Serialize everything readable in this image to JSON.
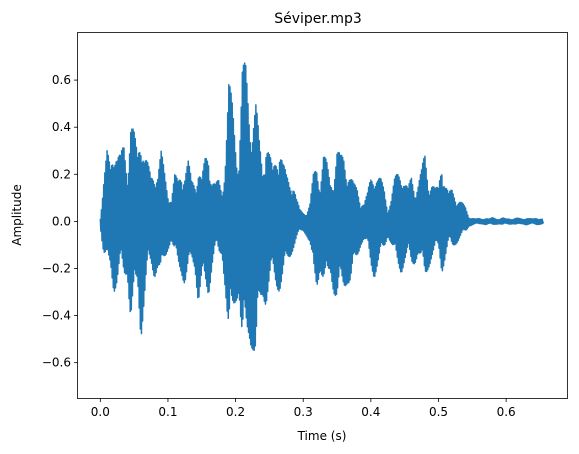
{
  "chart_data": {
    "type": "line",
    "title": "Séviper.mp3",
    "xlabel": "Time (s)",
    "ylabel": "Amplitude",
    "xlim": [
      -0.033,
      0.69
    ],
    "ylim": [
      -0.75,
      0.8
    ],
    "xticks": [
      0.0,
      0.1,
      0.2,
      0.3,
      0.4,
      0.5,
      0.6
    ],
    "xtick_labels": [
      "0.0",
      "0.1",
      "0.2",
      "0.3",
      "0.4",
      "0.5",
      "0.6"
    ],
    "yticks": [
      -0.6,
      -0.4,
      -0.2,
      0.0,
      0.2,
      0.4,
      0.6
    ],
    "ytick_labels": [
      "−0.6",
      "−0.4",
      "−0.2",
      "0.0",
      "0.2",
      "0.4",
      "0.6"
    ],
    "grid": false,
    "line_color": "#1f77b4",
    "series": [
      {
        "x": [
          0.0,
          0.005,
          0.01,
          0.015,
          0.02,
          0.025,
          0.03,
          0.035,
          0.04,
          0.045,
          0.05,
          0.055,
          0.06,
          0.065,
          0.07,
          0.075,
          0.08,
          0.085,
          0.09,
          0.095,
          0.1,
          0.105,
          0.11,
          0.115,
          0.12,
          0.125,
          0.13,
          0.135,
          0.14,
          0.145,
          0.15,
          0.155,
          0.16,
          0.165,
          0.17,
          0.175,
          0.18,
          0.185,
          0.19,
          0.195,
          0.2,
          0.205,
          0.21,
          0.215,
          0.22,
          0.225,
          0.23,
          0.235,
          0.24,
          0.245,
          0.25,
          0.255,
          0.26,
          0.265,
          0.27,
          0.275,
          0.28,
          0.285,
          0.29,
          0.295,
          0.3,
          0.305,
          0.31,
          0.315,
          0.32,
          0.325,
          0.33,
          0.335,
          0.34,
          0.345,
          0.35,
          0.355,
          0.36,
          0.365,
          0.37,
          0.375,
          0.38,
          0.385,
          0.39,
          0.395,
          0.4,
          0.405,
          0.41,
          0.415,
          0.42,
          0.425,
          0.43,
          0.435,
          0.44,
          0.445,
          0.45,
          0.455,
          0.46,
          0.465,
          0.47,
          0.475,
          0.48,
          0.485,
          0.49,
          0.495,
          0.5,
          0.505,
          0.51,
          0.515,
          0.52,
          0.525,
          0.53,
          0.535,
          0.54,
          0.545,
          0.55,
          0.555,
          0.56,
          0.565,
          0.57,
          0.575,
          0.58,
          0.585,
          0.59,
          0.595,
          0.6,
          0.605,
          0.61,
          0.615,
          0.62,
          0.625,
          0.63,
          0.635,
          0.64,
          0.645,
          0.65,
          0.655
        ],
        "upper": [
          0.02,
          0.18,
          0.3,
          0.25,
          0.4,
          0.3,
          0.28,
          0.35,
          0.26,
          0.45,
          0.38,
          0.3,
          0.46,
          0.3,
          0.25,
          0.2,
          0.25,
          0.22,
          0.3,
          0.22,
          0.15,
          0.1,
          0.2,
          0.18,
          0.25,
          0.22,
          0.26,
          0.18,
          0.2,
          0.24,
          0.18,
          0.28,
          0.34,
          0.2,
          0.16,
          0.18,
          0.15,
          0.32,
          0.6,
          0.52,
          0.4,
          0.3,
          0.66,
          0.68,
          0.55,
          0.48,
          0.52,
          0.35,
          0.25,
          0.4,
          0.3,
          0.22,
          0.3,
          0.38,
          0.26,
          0.2,
          0.18,
          0.2,
          0.1,
          0.05,
          0.04,
          0.04,
          0.08,
          0.2,
          0.25,
          0.2,
          0.3,
          0.25,
          0.18,
          0.22,
          0.32,
          0.28,
          0.3,
          0.26,
          0.2,
          0.16,
          0.15,
          0.1,
          0.08,
          0.12,
          0.2,
          0.24,
          0.2,
          0.18,
          0.14,
          0.06,
          0.1,
          0.18,
          0.22,
          0.25,
          0.18,
          0.14,
          0.2,
          0.16,
          0.18,
          0.22,
          0.3,
          0.2,
          0.18,
          0.14,
          0.15,
          0.3,
          0.18,
          0.12,
          0.14,
          0.12,
          0.1,
          0.08,
          0.06,
          0.02,
          0.015,
          0.01,
          0.012,
          0.01,
          0.014,
          0.01,
          0.016,
          0.012,
          0.01,
          0.015,
          0.01,
          0.012,
          0.01,
          0.014,
          0.012,
          0.01,
          0.015,
          0.012,
          0.01,
          0.014,
          0.012,
          0.01
        ],
        "lower": [
          -0.02,
          -0.15,
          -0.2,
          -0.2,
          -0.3,
          -0.28,
          -0.2,
          -0.25,
          -0.22,
          -0.45,
          -0.38,
          -0.28,
          -0.5,
          -0.36,
          -0.22,
          -0.2,
          -0.24,
          -0.2,
          -0.26,
          -0.18,
          -0.12,
          -0.08,
          -0.16,
          -0.2,
          -0.22,
          -0.28,
          -0.24,
          -0.18,
          -0.2,
          -0.36,
          -0.3,
          -0.3,
          -0.32,
          -0.2,
          -0.12,
          -0.16,
          -0.14,
          -0.3,
          -0.58,
          -0.45,
          -0.35,
          -0.3,
          -0.62,
          -0.55,
          -0.5,
          -0.55,
          -0.68,
          -0.42,
          -0.32,
          -0.36,
          -0.3,
          -0.24,
          -0.28,
          -0.3,
          -0.26,
          -0.2,
          -0.16,
          -0.12,
          -0.08,
          -0.05,
          -0.04,
          -0.06,
          -0.1,
          -0.26,
          -0.3,
          -0.2,
          -0.28,
          -0.3,
          -0.22,
          -0.3,
          -0.36,
          -0.32,
          -0.3,
          -0.26,
          -0.28,
          -0.22,
          -0.16,
          -0.1,
          -0.08,
          -0.12,
          -0.2,
          -0.24,
          -0.2,
          -0.16,
          -0.12,
          -0.06,
          -0.1,
          -0.16,
          -0.2,
          -0.22,
          -0.18,
          -0.16,
          -0.2,
          -0.18,
          -0.14,
          -0.2,
          -0.26,
          -0.2,
          -0.16,
          -0.14,
          -0.12,
          -0.22,
          -0.16,
          -0.1,
          -0.12,
          -0.1,
          -0.08,
          -0.06,
          -0.05,
          -0.02,
          -0.015,
          -0.01,
          -0.012,
          -0.01,
          -0.014,
          -0.01,
          -0.016,
          -0.012,
          -0.01,
          -0.015,
          -0.01,
          -0.012,
          -0.01,
          -0.014,
          -0.012,
          -0.01,
          -0.015,
          -0.012,
          -0.01,
          -0.014,
          -0.012,
          -0.01
        ]
      }
    ]
  }
}
